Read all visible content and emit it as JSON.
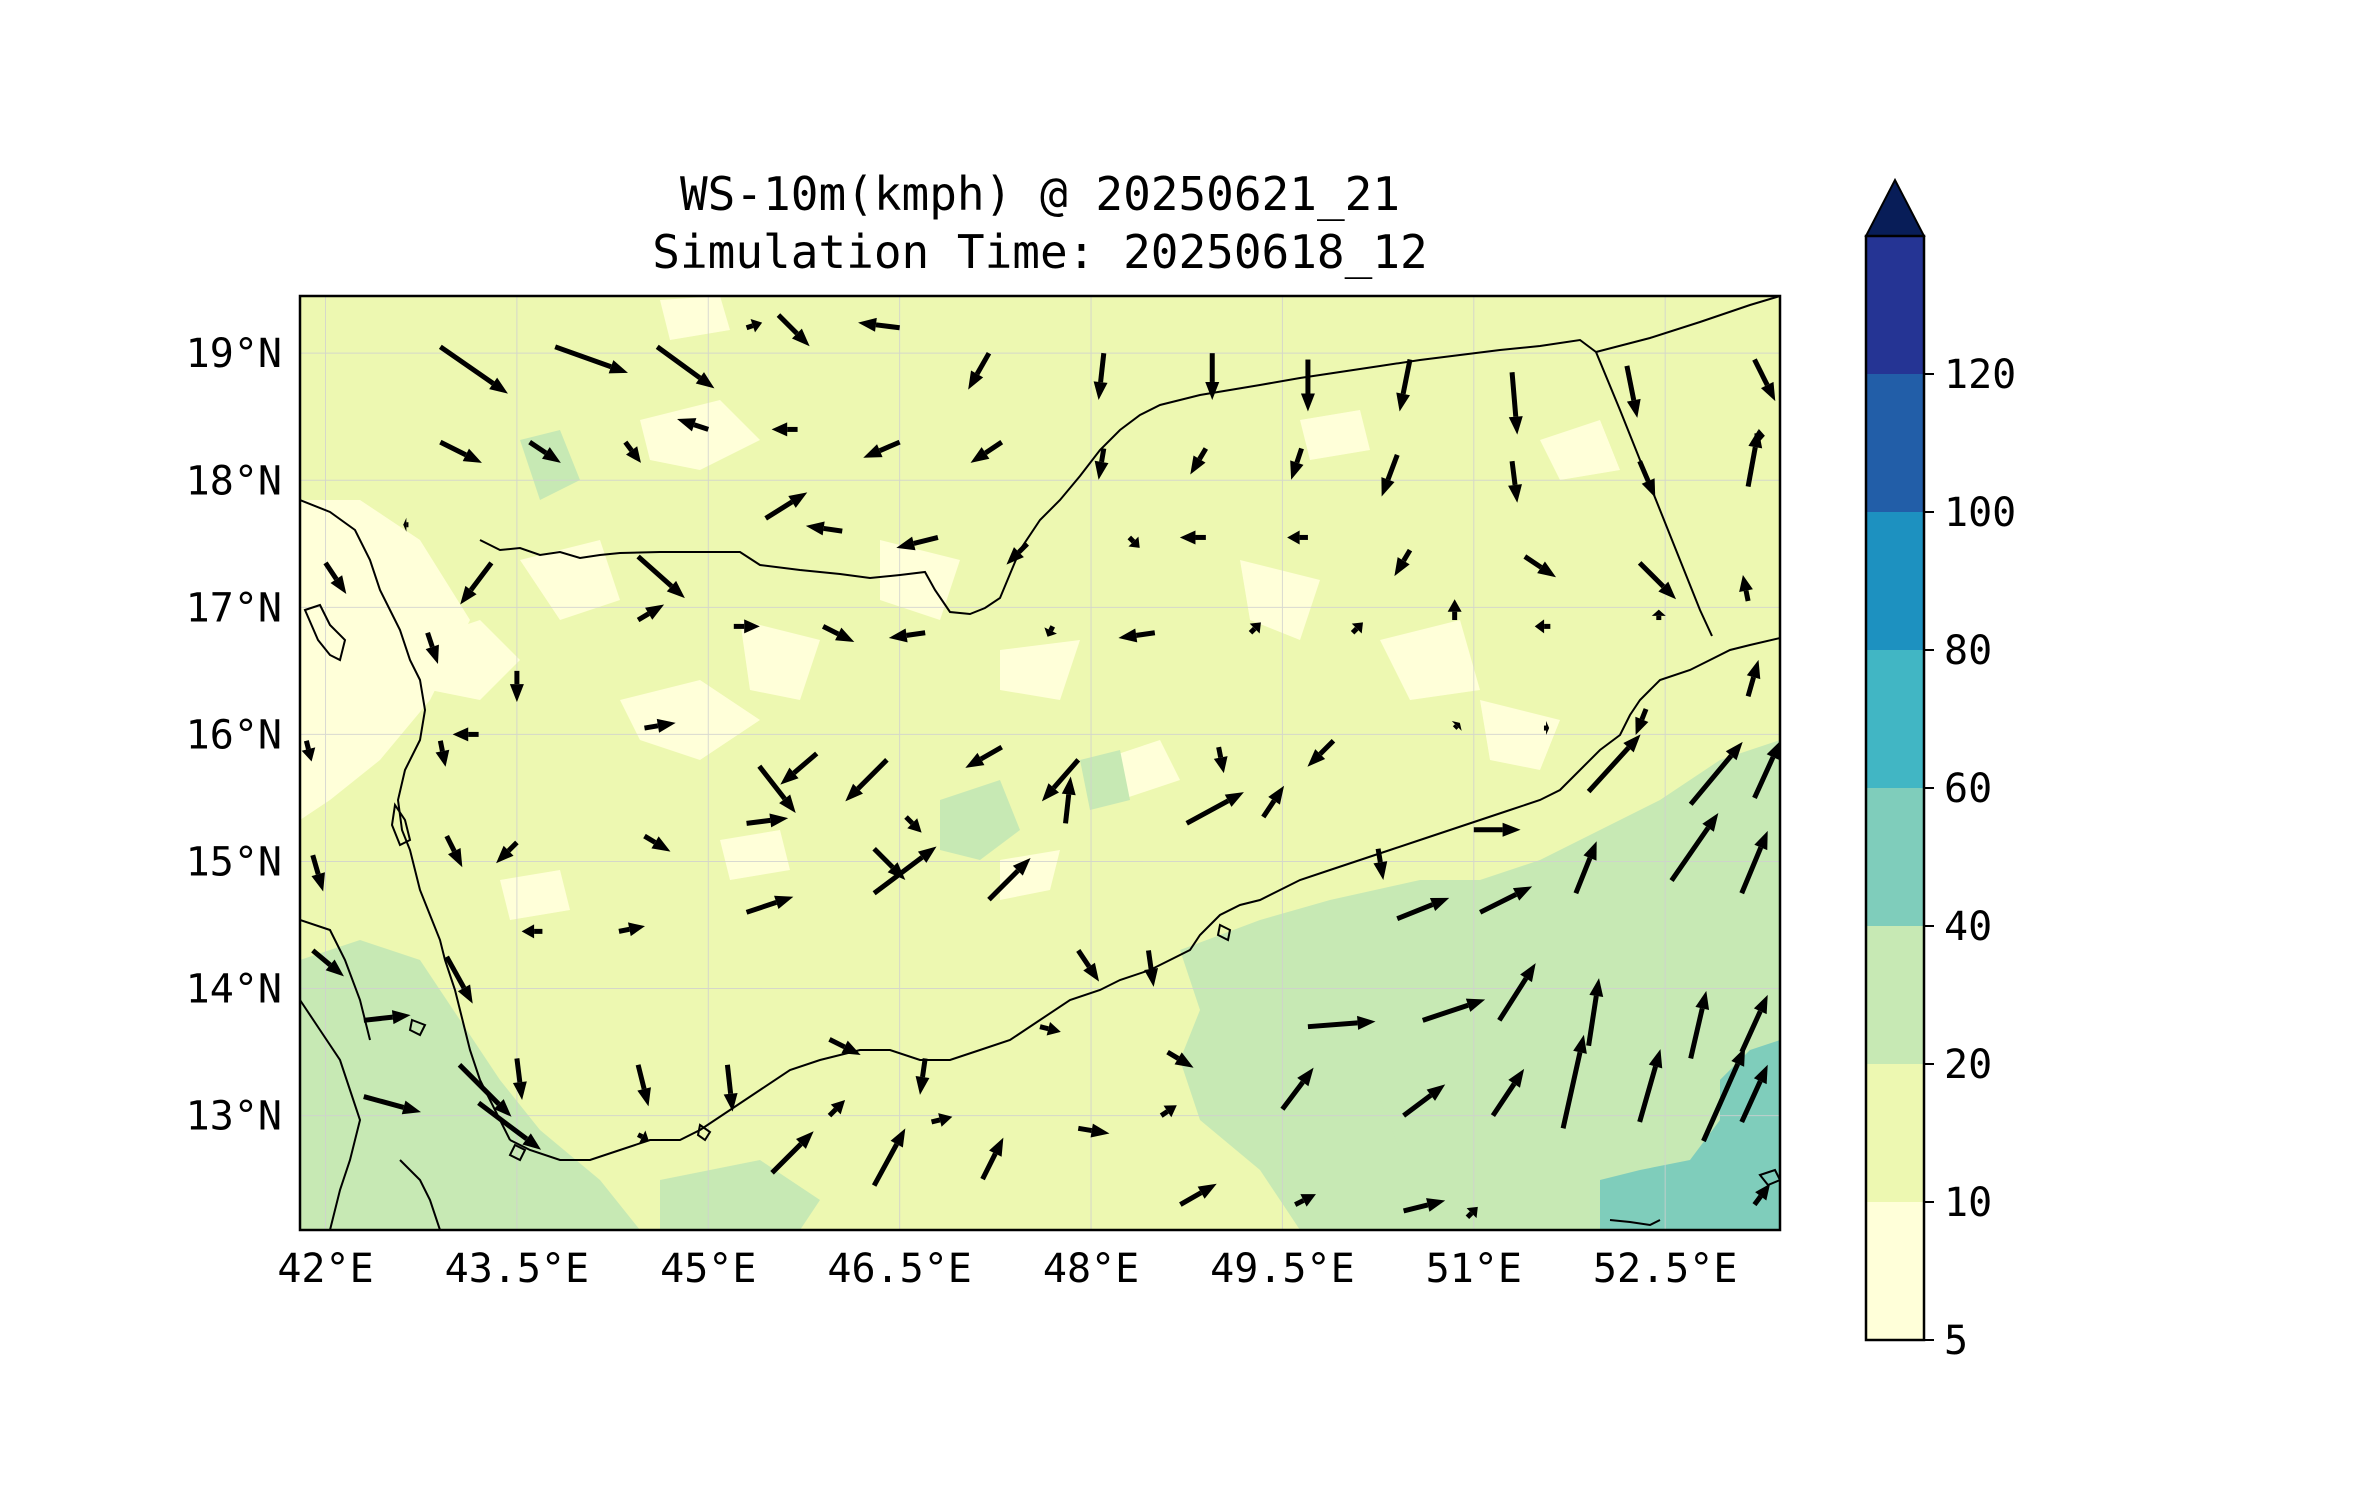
{
  "title": {
    "line1": "WS-10m(kmph) @ 20250621_21",
    "line2": "Simulation Time: 20250618_12"
  },
  "map": {
    "lon_range": [
      41.8,
      53.4
    ],
    "lat_range": [
      12.1,
      19.45
    ],
    "lon_ticks": [
      {
        "value": 42,
        "label": "42°E"
      },
      {
        "value": 43.5,
        "label": "43.5°E"
      },
      {
        "value": 45,
        "label": "45°E"
      },
      {
        "value": 46.5,
        "label": "46.5°E"
      },
      {
        "value": 48,
        "label": "48°E"
      },
      {
        "value": 49.5,
        "label": "49.5°E"
      },
      {
        "value": 51,
        "label": "51°E"
      },
      {
        "value": 52.5,
        "label": "52.5°E"
      }
    ],
    "lat_ticks": [
      {
        "value": 19,
        "label": "19°N"
      },
      {
        "value": 18,
        "label": "18°N"
      },
      {
        "value": 17,
        "label": "17°N"
      },
      {
        "value": 16,
        "label": "16°N"
      },
      {
        "value": 15,
        "label": "15°N"
      },
      {
        "value": 14,
        "label": "14°N"
      },
      {
        "value": 13,
        "label": "13°N"
      }
    ],
    "gridlines": true
  },
  "colorbar": {
    "levels": [
      5,
      10,
      20,
      40,
      60,
      80,
      100,
      120
    ],
    "tick_labels": [
      "5",
      "10",
      "20",
      "40",
      "60",
      "80",
      "100",
      "120"
    ],
    "colors": [
      "#ffffd9",
      "#edf8b1",
      "#c7e9b4",
      "#7fcdbb",
      "#41b6c4",
      "#1d91c0",
      "#225ea8",
      "#253494"
    ],
    "extend_color": "#081d58",
    "extend": "max"
  },
  "wind_vectors": [
    {
      "lon": 42.9,
      "lat": 19.05,
      "u": 13,
      "v": -9
    },
    {
      "lon": 43.8,
      "lat": 19.05,
      "u": 14,
      "v": -5
    },
    {
      "lon": 44.6,
      "lat": 19.05,
      "u": 11,
      "v": -8
    },
    {
      "lon": 45.3,
      "lat": 19.2,
      "u": 3,
      "v": 1
    },
    {
      "lon": 45.55,
      "lat": 19.3,
      "u": 6,
      "v": -6
    },
    {
      "lon": 46.5,
      "lat": 19.2,
      "u": -8,
      "v": 1
    },
    {
      "lon": 47.2,
      "lat": 19.0,
      "u": -4,
      "v": -7
    },
    {
      "lon": 48.1,
      "lat": 19.0,
      "u": -1,
      "v": -9
    },
    {
      "lon": 48.95,
      "lat": 19.0,
      "u": 0,
      "v": -9
    },
    {
      "lon": 49.7,
      "lat": 18.95,
      "u": 0,
      "v": -10
    },
    {
      "lon": 50.5,
      "lat": 18.95,
      "u": -2,
      "v": -10
    },
    {
      "lon": 51.3,
      "lat": 18.85,
      "u": 1,
      "v": -12
    },
    {
      "lon": 52.2,
      "lat": 18.9,
      "u": 2,
      "v": -10
    },
    {
      "lon": 53.2,
      "lat": 18.95,
      "u": 4,
      "v": -8
    },
    {
      "lon": 42.9,
      "lat": 18.3,
      "u": 8,
      "v": -4
    },
    {
      "lon": 43.6,
      "lat": 18.3,
      "u": 6,
      "v": -4
    },
    {
      "lon": 44.35,
      "lat": 18.3,
      "u": 3,
      "v": -4
    },
    {
      "lon": 45.0,
      "lat": 18.4,
      "u": -6,
      "v": 2
    },
    {
      "lon": 45.7,
      "lat": 18.4,
      "u": -5,
      "v": 0
    },
    {
      "lon": 46.5,
      "lat": 18.3,
      "u": -7,
      "v": -3
    },
    {
      "lon": 47.3,
      "lat": 18.3,
      "u": -6,
      "v": -4
    },
    {
      "lon": 48.1,
      "lat": 18.25,
      "u": -1,
      "v": -6
    },
    {
      "lon": 48.9,
      "lat": 18.25,
      "u": -3,
      "v": -5
    },
    {
      "lon": 49.65,
      "lat": 18.25,
      "u": -2,
      "v": -6
    },
    {
      "lon": 50.4,
      "lat": 18.2,
      "u": -3,
      "v": -8
    },
    {
      "lon": 51.3,
      "lat": 18.15,
      "u": 1,
      "v": -8
    },
    {
      "lon": 52.3,
      "lat": 18.15,
      "u": 3,
      "v": -7
    },
    {
      "lon": 53.2,
      "lat": 18.35,
      "u": 2,
      "v": 0
    },
    {
      "lon": 42.65,
      "lat": 17.65,
      "u": -1,
      "v": 0
    },
    {
      "lon": 43.3,
      "lat": 17.35,
      "u": -6,
      "v": -8
    },
    {
      "lon": 44.45,
      "lat": 17.4,
      "u": 9,
      "v": -8
    },
    {
      "lon": 45.45,
      "lat": 17.7,
      "u": 8,
      "v": 5
    },
    {
      "lon": 46.05,
      "lat": 17.6,
      "u": -7,
      "v": 1
    },
    {
      "lon": 46.8,
      "lat": 17.55,
      "u": -8,
      "v": -2
    },
    {
      "lon": 47.5,
      "lat": 17.5,
      "u": -4,
      "v": -4
    },
    {
      "lon": 48.3,
      "lat": 17.55,
      "u": 2,
      "v": -2
    },
    {
      "lon": 48.9,
      "lat": 17.55,
      "u": -5,
      "v": 0
    },
    {
      "lon": 49.7,
      "lat": 17.55,
      "u": -4,
      "v": 0
    },
    {
      "lon": 50.5,
      "lat": 17.45,
      "u": -3,
      "v": -5
    },
    {
      "lon": 51.4,
      "lat": 17.4,
      "u": 6,
      "v": -4
    },
    {
      "lon": 52.3,
      "lat": 17.35,
      "u": 7,
      "v": -7
    },
    {
      "lon": 53.15,
      "lat": 17.95,
      "u": 2,
      "v": 11
    },
    {
      "lon": 42.0,
      "lat": 17.35,
      "u": 4,
      "v": -6
    },
    {
      "lon": 42.8,
      "lat": 16.8,
      "u": 2,
      "v": -6
    },
    {
      "lon": 43.5,
      "lat": 16.5,
      "u": 0,
      "v": -6
    },
    {
      "lon": 44.45,
      "lat": 16.9,
      "u": 5,
      "v": 3
    },
    {
      "lon": 45.2,
      "lat": 16.85,
      "u": 5,
      "v": 0
    },
    {
      "lon": 45.9,
      "lat": 16.85,
      "u": 6,
      "v": -3
    },
    {
      "lon": 46.7,
      "lat": 16.8,
      "u": -7,
      "v": -1
    },
    {
      "lon": 47.7,
      "lat": 16.85,
      "u": -1,
      "v": -2
    },
    {
      "lon": 48.5,
      "lat": 16.8,
      "u": -7,
      "v": -1
    },
    {
      "lon": 49.25,
      "lat": 16.8,
      "u": 2,
      "v": 2
    },
    {
      "lon": 50.05,
      "lat": 16.8,
      "u": 2,
      "v": 2
    },
    {
      "lon": 50.85,
      "lat": 16.9,
      "u": 0,
      "v": 4
    },
    {
      "lon": 51.6,
      "lat": 16.85,
      "u": -3,
      "v": 0
    },
    {
      "lon": 52.45,
      "lat": 16.9,
      "u": 0,
      "v": 2
    },
    {
      "lon": 53.15,
      "lat": 17.05,
      "u": -1,
      "v": 5
    },
    {
      "lon": 42.9,
      "lat": 15.95,
      "u": 1,
      "v": -5
    },
    {
      "lon": 43.2,
      "lat": 16.0,
      "u": -5,
      "v": 0
    },
    {
      "lon": 44.5,
      "lat": 16.05,
      "u": 6,
      "v": 1
    },
    {
      "lon": 45.4,
      "lat": 15.75,
      "u": 7,
      "v": -9
    },
    {
      "lon": 45.85,
      "lat": 15.85,
      "u": -7,
      "v": -6
    },
    {
      "lon": 46.4,
      "lat": 15.8,
      "u": -8,
      "v": -8
    },
    {
      "lon": 47.3,
      "lat": 15.9,
      "u": -7,
      "v": -4
    },
    {
      "lon": 47.9,
      "lat": 15.8,
      "u": -7,
      "v": -8
    },
    {
      "lon": 49.0,
      "lat": 15.9,
      "u": 1,
      "v": -5
    },
    {
      "lon": 49.9,
      "lat": 15.95,
      "u": -5,
      "v": -5
    },
    {
      "lon": 50.85,
      "lat": 16.05,
      "u": 1,
      "v": 1
    },
    {
      "lon": 51.55,
      "lat": 16.05,
      "u": 1,
      "v": 0
    },
    {
      "lon": 52.35,
      "lat": 16.2,
      "u": -2,
      "v": -5
    },
    {
      "lon": 53.15,
      "lat": 16.3,
      "u": 2,
      "v": 7
    },
    {
      "lon": 41.85,
      "lat": 15.95,
      "u": 1,
      "v": -4
    },
    {
      "lon": 42.95,
      "lat": 15.2,
      "u": 3,
      "v": -6
    },
    {
      "lon": 43.5,
      "lat": 15.15,
      "u": -4,
      "v": -4
    },
    {
      "lon": 44.5,
      "lat": 15.2,
      "u": 5,
      "v": -3
    },
    {
      "lon": 45.3,
      "lat": 15.3,
      "u": 8,
      "v": 1
    },
    {
      "lon": 46.3,
      "lat": 15.1,
      "u": 6,
      "v": -6
    },
    {
      "lon": 46.55,
      "lat": 15.35,
      "u": 3,
      "v": -3
    },
    {
      "lon": 47.8,
      "lat": 15.3,
      "u": 1,
      "v": 9
    },
    {
      "lon": 48.75,
      "lat": 15.3,
      "u": 11,
      "v": 6
    },
    {
      "lon": 49.35,
      "lat": 15.35,
      "u": 4,
      "v": 6
    },
    {
      "lon": 50.25,
      "lat": 15.1,
      "u": 1,
      "v": -6
    },
    {
      "lon": 51.0,
      "lat": 15.25,
      "u": 9,
      "v": 0
    },
    {
      "lon": 51.9,
      "lat": 15.55,
      "u": 10,
      "v": 11
    },
    {
      "lon": 52.7,
      "lat": 15.45,
      "u": 10,
      "v": 12
    },
    {
      "lon": 53.2,
      "lat": 15.5,
      "u": 5,
      "v": 11
    },
    {
      "lon": 41.9,
      "lat": 15.05,
      "u": 2,
      "v": -7
    },
    {
      "lon": 41.9,
      "lat": 14.3,
      "u": 6,
      "v": -5
    },
    {
      "lon": 42.95,
      "lat": 14.25,
      "u": 5,
      "v": -9
    },
    {
      "lon": 43.7,
      "lat": 14.45,
      "u": -4,
      "v": 0
    },
    {
      "lon": 44.3,
      "lat": 14.45,
      "u": 5,
      "v": 1
    },
    {
      "lon": 45.3,
      "lat": 14.6,
      "u": 9,
      "v": 3
    },
    {
      "lon": 46.3,
      "lat": 14.75,
      "u": 12,
      "v": 9
    },
    {
      "lon": 47.2,
      "lat": 14.7,
      "u": 8,
      "v": 8
    },
    {
      "lon": 47.9,
      "lat": 14.3,
      "u": 4,
      "v": -6
    },
    {
      "lon": 48.45,
      "lat": 14.3,
      "u": 1,
      "v": -7
    },
    {
      "lon": 50.4,
      "lat": 14.55,
      "u": 10,
      "v": 4
    },
    {
      "lon": 51.05,
      "lat": 14.6,
      "u": 10,
      "v": 5
    },
    {
      "lon": 51.8,
      "lat": 14.75,
      "u": 4,
      "v": 10
    },
    {
      "lon": 52.55,
      "lat": 14.85,
      "u": 9,
      "v": 13
    },
    {
      "lon": 53.1,
      "lat": 14.75,
      "u": 5,
      "v": 12
    },
    {
      "lon": 42.3,
      "lat": 13.75,
      "u": 9,
      "v": 1
    },
    {
      "lon": 43.05,
      "lat": 13.4,
      "u": 10,
      "v": -10
    },
    {
      "lon": 43.5,
      "lat": 13.45,
      "u": 1,
      "v": -8
    },
    {
      "lon": 44.45,
      "lat": 13.4,
      "u": 2,
      "v": -8
    },
    {
      "lon": 45.15,
      "lat": 13.4,
      "u": 1,
      "v": -9
    },
    {
      "lon": 45.95,
      "lat": 13.6,
      "u": 6,
      "v": -3
    },
    {
      "lon": 46.7,
      "lat": 13.45,
      "u": -1,
      "v": -7
    },
    {
      "lon": 47.6,
      "lat": 13.7,
      "u": 4,
      "v": -1
    },
    {
      "lon": 48.6,
      "lat": 13.5,
      "u": 5,
      "v": -3
    },
    {
      "lon": 49.7,
      "lat": 13.7,
      "u": 13,
      "v": 1
    },
    {
      "lon": 50.6,
      "lat": 13.75,
      "u": 12,
      "v": 4
    },
    {
      "lon": 51.2,
      "lat": 13.75,
      "u": 7,
      "v": 11
    },
    {
      "lon": 51.9,
      "lat": 13.55,
      "u": 2,
      "v": 13
    },
    {
      "lon": 52.7,
      "lat": 13.45,
      "u": 3,
      "v": 13
    },
    {
      "lon": 53.1,
      "lat": 13.5,
      "u": 5,
      "v": 11
    },
    {
      "lon": 42.3,
      "lat": 13.15,
      "u": 11,
      "v": -3
    },
    {
      "lon": 43.2,
      "lat": 13.1,
      "u": 12,
      "v": -9
    },
    {
      "lon": 44.45,
      "lat": 12.85,
      "u": 2,
      "v": -1
    },
    {
      "lon": 45.5,
      "lat": 12.55,
      "u": 8,
      "v": 8
    },
    {
      "lon": 45.95,
      "lat": 13.0,
      "u": 3,
      "v": 3
    },
    {
      "lon": 46.3,
      "lat": 12.45,
      "u": 6,
      "v": 11
    },
    {
      "lon": 46.75,
      "lat": 12.95,
      "u": 4,
      "v": 1
    },
    {
      "lon": 47.15,
      "lat": 12.5,
      "u": 4,
      "v": 8
    },
    {
      "lon": 47.9,
      "lat": 12.9,
      "u": 6,
      "v": -1
    },
    {
      "lon": 48.55,
      "lat": 13.0,
      "u": 3,
      "v": 2
    },
    {
      "lon": 48.7,
      "lat": 12.3,
      "u": 7,
      "v": 4
    },
    {
      "lon": 49.5,
      "lat": 13.05,
      "u": 6,
      "v": 8
    },
    {
      "lon": 49.6,
      "lat": 12.3,
      "u": 4,
      "v": 2
    },
    {
      "lon": 50.45,
      "lat": 13.0,
      "u": 8,
      "v": 6
    },
    {
      "lon": 50.45,
      "lat": 12.25,
      "u": 8,
      "v": 2
    },
    {
      "lon": 51.15,
      "lat": 13.0,
      "u": 6,
      "v": 9
    },
    {
      "lon": 50.95,
      "lat": 12.2,
      "u": 2,
      "v": 2
    },
    {
      "lon": 51.7,
      "lat": 12.9,
      "u": 4,
      "v": 18
    },
    {
      "lon": 52.3,
      "lat": 12.95,
      "u": 4,
      "v": 14
    },
    {
      "lon": 52.8,
      "lat": 12.8,
      "u": 8,
      "v": 18
    },
    {
      "lon": 53.1,
      "lat": 12.95,
      "u": 5,
      "v": 11
    },
    {
      "lon": 53.2,
      "lat": 12.3,
      "u": 3,
      "v": 4
    }
  ]
}
